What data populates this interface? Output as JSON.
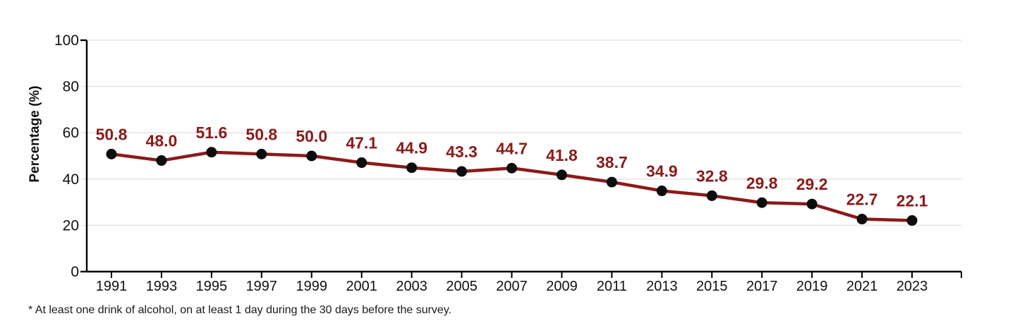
{
  "chart_data": {
    "type": "line",
    "title": "",
    "x": [
      "1991",
      "1993",
      "1995",
      "1997",
      "1999",
      "2001",
      "2003",
      "2005",
      "2007",
      "2009",
      "2011",
      "2013",
      "2015",
      "2017",
      "2019",
      "2021",
      "2023"
    ],
    "values": [
      50.8,
      48.0,
      51.6,
      50.8,
      50.0,
      47.1,
      44.9,
      43.3,
      44.7,
      41.8,
      38.7,
      34.9,
      32.8,
      29.8,
      29.2,
      22.7,
      22.1
    ],
    "point_labels": [
      "50.8",
      "48.0",
      "51.6",
      "50.8",
      "50.0",
      "47.1",
      "44.9",
      "43.3",
      "44.7",
      "41.8",
      "38.7",
      "34.9",
      "32.8",
      "29.8",
      "29.2",
      "22.7",
      "22.1"
    ],
    "xlabel": "",
    "ylabel": "Percentage (%)",
    "ylim": [
      0,
      100
    ],
    "yticks": [
      0,
      20,
      40,
      60,
      80,
      100
    ],
    "grid": true,
    "legend": false,
    "colors": {
      "line": "#8B1A1A",
      "marker": "#0d0d0d",
      "data_label": "#8B1A1A",
      "gridline": "#e6e6e6",
      "axis": "#000000",
      "tick_label": "#111111"
    }
  },
  "footnote": "* At least one drink of alcohol, on at least 1 day during the 30 days before the survey."
}
